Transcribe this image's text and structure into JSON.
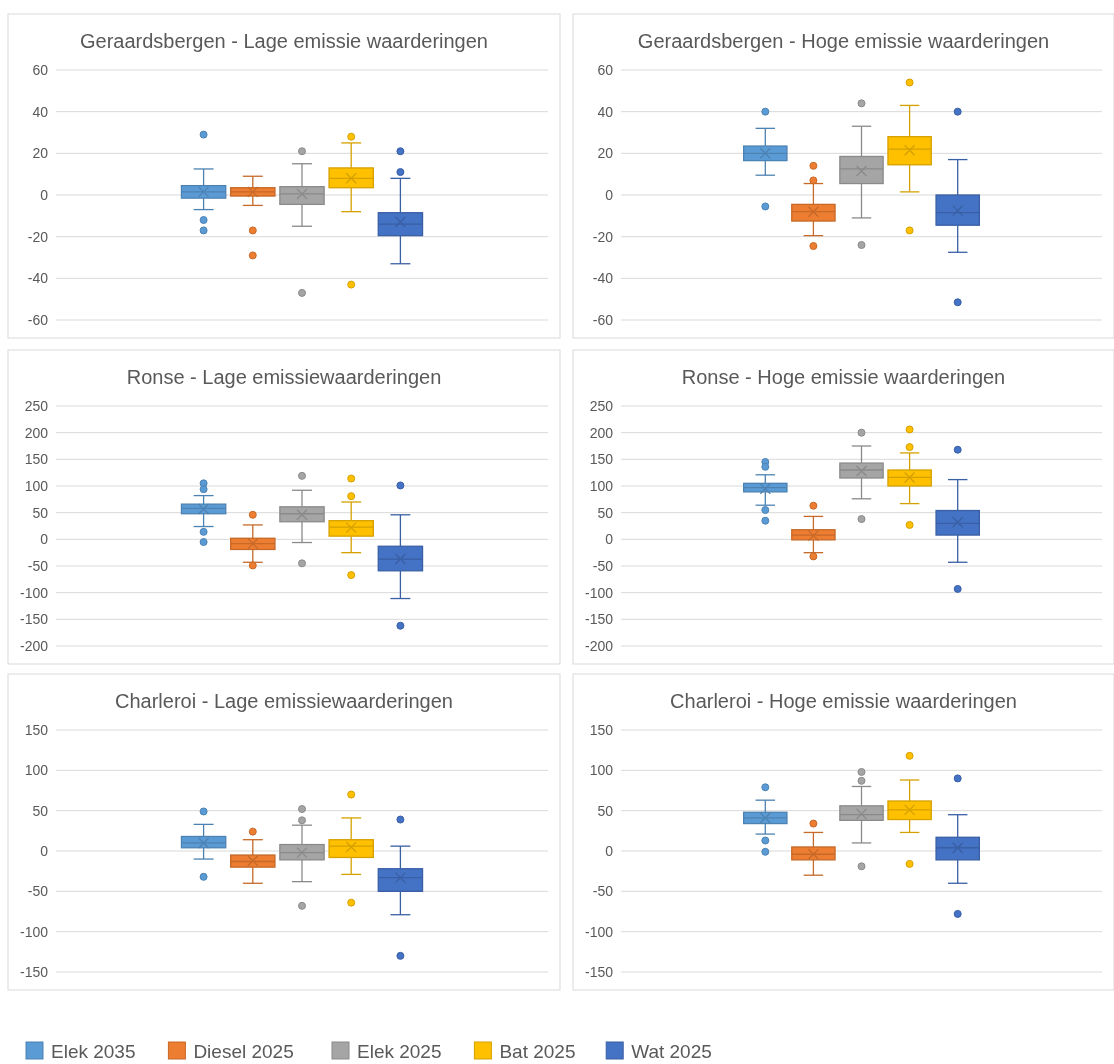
{
  "chart_data": [
    {
      "type": "box",
      "title": "Geraardsbergen - Lage emissie waarderingen",
      "categories": [
        null
      ],
      "ylim": [
        -60,
        60
      ],
      "yticks": [
        -60,
        -40,
        -20,
        0,
        20,
        40,
        60
      ],
      "grid": "y",
      "legend": "bottom",
      "series": [
        {
          "name": "Elek 2035",
          "color": "#5b9bd5",
          "boxes": [
            {
              "low": -7,
              "q1": -1.5,
              "median": 1.5,
              "q3": 4.5,
              "high": 12.5,
              "mean": 1.5,
              "outliers": [
                29,
                -12,
                -17
              ]
            }
          ]
        },
        {
          "name": "Diesel 2025",
          "color": "#ed7d31",
          "boxes": [
            {
              "low": -5,
              "q1": -0.5,
              "median": 1.5,
              "q3": 3.5,
              "high": 9,
              "mean": 1.5,
              "outliers": [
                -17,
                -29
              ]
            }
          ]
        },
        {
          "name": "Elek 2025",
          "color": "#a5a5a5",
          "boxes": [
            {
              "low": -15,
              "q1": -4.5,
              "median": 0.5,
              "q3": 4,
              "high": 15,
              "mean": 0.5,
              "outliers": [
                21,
                -47
              ]
            }
          ]
        },
        {
          "name": "Bat 2025",
          "color": "#ffc000",
          "boxes": [
            {
              "low": -8,
              "q1": 3.5,
              "median": 8,
              "q3": 13,
              "high": 25,
              "mean": 8,
              "outliers": [
                28,
                -43
              ]
            }
          ]
        },
        {
          "name": "Wat 2025",
          "color": "#4472c4",
          "boxes": [
            {
              "low": -33,
              "q1": -19.5,
              "median": -14,
              "q3": -8.5,
              "high": 8,
              "mean": -13,
              "outliers": [
                21,
                11
              ]
            }
          ]
        }
      ]
    },
    {
      "type": "box",
      "title": "Geraardsbergen - Hoge emissie waarderingen",
      "categories": [
        null
      ],
      "ylim": [
        -60,
        60
      ],
      "yticks": [
        -60,
        -40,
        -20,
        0,
        20,
        40,
        60
      ],
      "grid": "y",
      "series": [
        {
          "color": "#5b9bd5",
          "boxes": [
            {
              "low": 9.5,
              "q1": 16.5,
              "median": 20,
              "q3": 23.5,
              "high": 32,
              "mean": 20,
              "outliers": [
                40,
                -5.5
              ]
            }
          ]
        },
        {
          "color": "#ed7d31",
          "boxes": [
            {
              "low": -19.5,
              "q1": -12.5,
              "median": -8,
              "q3": -4.5,
              "high": 5.5,
              "mean": -8,
              "outliers": [
                14,
                7,
                -24.5
              ]
            }
          ]
        },
        {
          "color": "#a5a5a5",
          "boxes": [
            {
              "low": -11,
              "q1": 5.5,
              "median": 12.5,
              "q3": 18.5,
              "high": 33,
              "mean": 11.5,
              "outliers": [
                44,
                -24
              ]
            }
          ]
        },
        {
          "color": "#ffc000",
          "boxes": [
            {
              "low": 1.5,
              "q1": 14.5,
              "median": 22,
              "q3": 28,
              "high": 43,
              "mean": 21.5,
              "outliers": [
                54,
                -17
              ]
            }
          ]
        },
        {
          "color": "#4472c4",
          "boxes": [
            {
              "low": -27.5,
              "q1": -14.5,
              "median": -8.5,
              "q3": 0,
              "high": 17,
              "mean": -7.5,
              "outliers": [
                40,
                -51.5
              ]
            }
          ]
        }
      ]
    },
    {
      "type": "box",
      "title": "Ronse - Lage emissiewaarderingen",
      "categories": [
        null
      ],
      "ylim": [
        -200,
        250
      ],
      "yticks": [
        -200,
        -150,
        -100,
        -50,
        0,
        50,
        100,
        150,
        200,
        250
      ],
      "grid": "y",
      "series": [
        {
          "color": "#5b9bd5",
          "boxes": [
            {
              "low": 24,
              "q1": 48,
              "median": 58,
              "q3": 66,
              "high": 82,
              "mean": 57,
              "outliers": [
                105,
                94,
                14,
                -5
              ]
            }
          ]
        },
        {
          "color": "#ed7d31",
          "boxes": [
            {
              "low": -43,
              "q1": -19,
              "median": -8,
              "q3": 2,
              "high": 27,
              "mean": -8,
              "outliers": [
                46,
                -49
              ]
            }
          ]
        },
        {
          "color": "#a5a5a5",
          "boxes": [
            {
              "low": -6,
              "q1": 33,
              "median": 48,
              "q3": 61,
              "high": 92,
              "mean": 46,
              "outliers": [
                119,
                -45
              ]
            }
          ]
        },
        {
          "color": "#ffc000",
          "boxes": [
            {
              "low": -25,
              "q1": 6,
              "median": 23,
              "q3": 35,
              "high": 70,
              "mean": 22,
              "outliers": [
                114,
                81,
                -67
              ]
            }
          ]
        },
        {
          "color": "#4472c4",
          "boxes": [
            {
              "low": -111,
              "q1": -59,
              "median": -37,
              "q3": -13,
              "high": 46,
              "mean": -37,
              "outliers": [
                101,
                -162
              ]
            }
          ]
        }
      ]
    },
    {
      "type": "box",
      "title": "Ronse - Hoge emissie waarderingen",
      "categories": [
        null
      ],
      "ylim": [
        -200,
        250
      ],
      "yticks": [
        -200,
        -150,
        -100,
        -50,
        0,
        50,
        100,
        150,
        200,
        250
      ],
      "grid": "y",
      "series": [
        {
          "color": "#5b9bd5",
          "boxes": [
            {
              "low": 64,
              "q1": 89,
              "median": 97,
              "q3": 105,
              "high": 121,
              "mean": 95,
              "outliers": [
                145,
                136,
                55,
                35
              ]
            }
          ]
        },
        {
          "color": "#ed7d31",
          "boxes": [
            {
              "low": -25,
              "q1": -1,
              "median": 8,
              "q3": 18,
              "high": 43,
              "mean": 7,
              "outliers": [
                63,
                -32
              ]
            }
          ]
        },
        {
          "color": "#a5a5a5",
          "boxes": [
            {
              "low": 76,
              "q1": 115,
              "median": 130,
              "q3": 143,
              "high": 175,
              "mean": 128,
              "outliers": [
                200,
                38
              ]
            }
          ]
        },
        {
          "color": "#ffc000",
          "boxes": [
            {
              "low": 67,
              "q1": 100,
              "median": 116,
              "q3": 130,
              "high": 162,
              "mean": 116,
              "outliers": [
                206,
                173,
                27
              ]
            }
          ]
        },
        {
          "color": "#4472c4",
          "boxes": [
            {
              "low": -43,
              "q1": 8,
              "median": 30,
              "q3": 54,
              "high": 112,
              "mean": 32,
              "outliers": [
                168,
                -93
              ]
            }
          ]
        }
      ]
    },
    {
      "type": "box",
      "title": "Charleroi - Lage emissiewaarderingen",
      "categories": [
        null
      ],
      "ylim": [
        -150,
        150
      ],
      "yticks": [
        -150,
        -100,
        -50,
        0,
        50,
        100,
        150
      ],
      "grid": "y",
      "series": [
        {
          "color": "#5b9bd5",
          "boxes": [
            {
              "low": -10,
              "q1": 4,
              "median": 10,
              "q3": 18,
              "high": 33,
              "mean": 10,
              "outliers": [
                49,
                -32
              ]
            }
          ]
        },
        {
          "color": "#ed7d31",
          "boxes": [
            {
              "low": -40,
              "q1": -20,
              "median": -13,
              "q3": -5,
              "high": 14,
              "mean": -12,
              "outliers": [
                24
              ]
            }
          ]
        },
        {
          "color": "#a5a5a5",
          "boxes": [
            {
              "low": -38,
              "q1": -11,
              "median": -2,
              "q3": 8,
              "high": 32,
              "mean": -2,
              "outliers": [
                52,
                38,
                -68
              ]
            }
          ]
        },
        {
          "color": "#ffc000",
          "boxes": [
            {
              "low": -29,
              "q1": -8,
              "median": 6,
              "q3": 14,
              "high": 41,
              "mean": 5,
              "outliers": [
                70,
                -64
              ]
            }
          ]
        },
        {
          "color": "#4472c4",
          "boxes": [
            {
              "low": -79,
              "q1": -50,
              "median": -33,
              "q3": -22,
              "high": 6,
              "mean": -33,
              "outliers": [
                39,
                -130
              ]
            }
          ]
        }
      ]
    },
    {
      "type": "box",
      "title": "Charleroi - Hoge emissie waarderingen",
      "categories": [
        null
      ],
      "ylim": [
        -150,
        150
      ],
      "yticks": [
        -150,
        -100,
        -50,
        0,
        50,
        100,
        150
      ],
      "grid": "y",
      "series": [
        {
          "color": "#5b9bd5",
          "boxes": [
            {
              "low": 21,
              "q1": 34,
              "median": 41,
              "q3": 48,
              "high": 63,
              "mean": 41,
              "outliers": [
                79,
                13,
                -1
              ]
            }
          ]
        },
        {
          "color": "#ed7d31",
          "boxes": [
            {
              "low": -30,
              "q1": -11,
              "median": -4,
              "q3": 5,
              "high": 23,
              "mean": -4,
              "outliers": [
                34
              ]
            }
          ]
        },
        {
          "color": "#a5a5a5",
          "boxes": [
            {
              "low": 10,
              "q1": 38,
              "median": 45,
              "q3": 56,
              "high": 80,
              "mean": 46,
              "outliers": [
                98,
                87,
                -19
              ]
            }
          ]
        },
        {
          "color": "#ffc000",
          "boxes": [
            {
              "low": 23,
              "q1": 39,
              "median": 51,
              "q3": 62,
              "high": 88,
              "mean": 51,
              "outliers": [
                118,
                -16
              ]
            }
          ]
        },
        {
          "color": "#4472c4",
          "boxes": [
            {
              "low": -40,
              "q1": -11,
              "median": 4,
              "q3": 17,
              "high": 45,
              "mean": 4,
              "outliers": [
                90,
                -78
              ]
            }
          ]
        }
      ]
    }
  ]
}
